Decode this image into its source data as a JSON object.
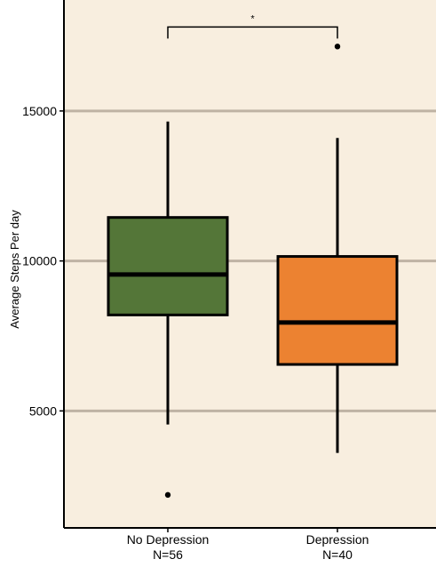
{
  "chart_data": {
    "type": "boxplot",
    "title": "",
    "xlabel": "",
    "ylabel": "Average Steps Per day",
    "ylim": [
      1100,
      18700
    ],
    "yticks": [
      5000,
      10000,
      15000
    ],
    "grid": "horizontal",
    "legend": "none",
    "background_color": "#f8eedf",
    "gridline_color": "#bfb3a4",
    "categories": [
      {
        "label": "No Depression",
        "sublabel": "N=56",
        "color": "#547638",
        "whisker_low": 4550,
        "q1": 8200,
        "median": 9550,
        "q3": 11450,
        "whisker_high": 14650,
        "outliers": [
          2200
        ]
      },
      {
        "label": "Depression",
        "sublabel": "N=40",
        "color": "#ec8231",
        "whisker_low": 3600,
        "q1": 6550,
        "median": 7950,
        "q3": 10150,
        "whisker_high": 14100,
        "outliers": [
          17150
        ]
      }
    ],
    "significance": {
      "label": "*",
      "between": [
        0,
        1
      ],
      "y": 17800
    }
  }
}
